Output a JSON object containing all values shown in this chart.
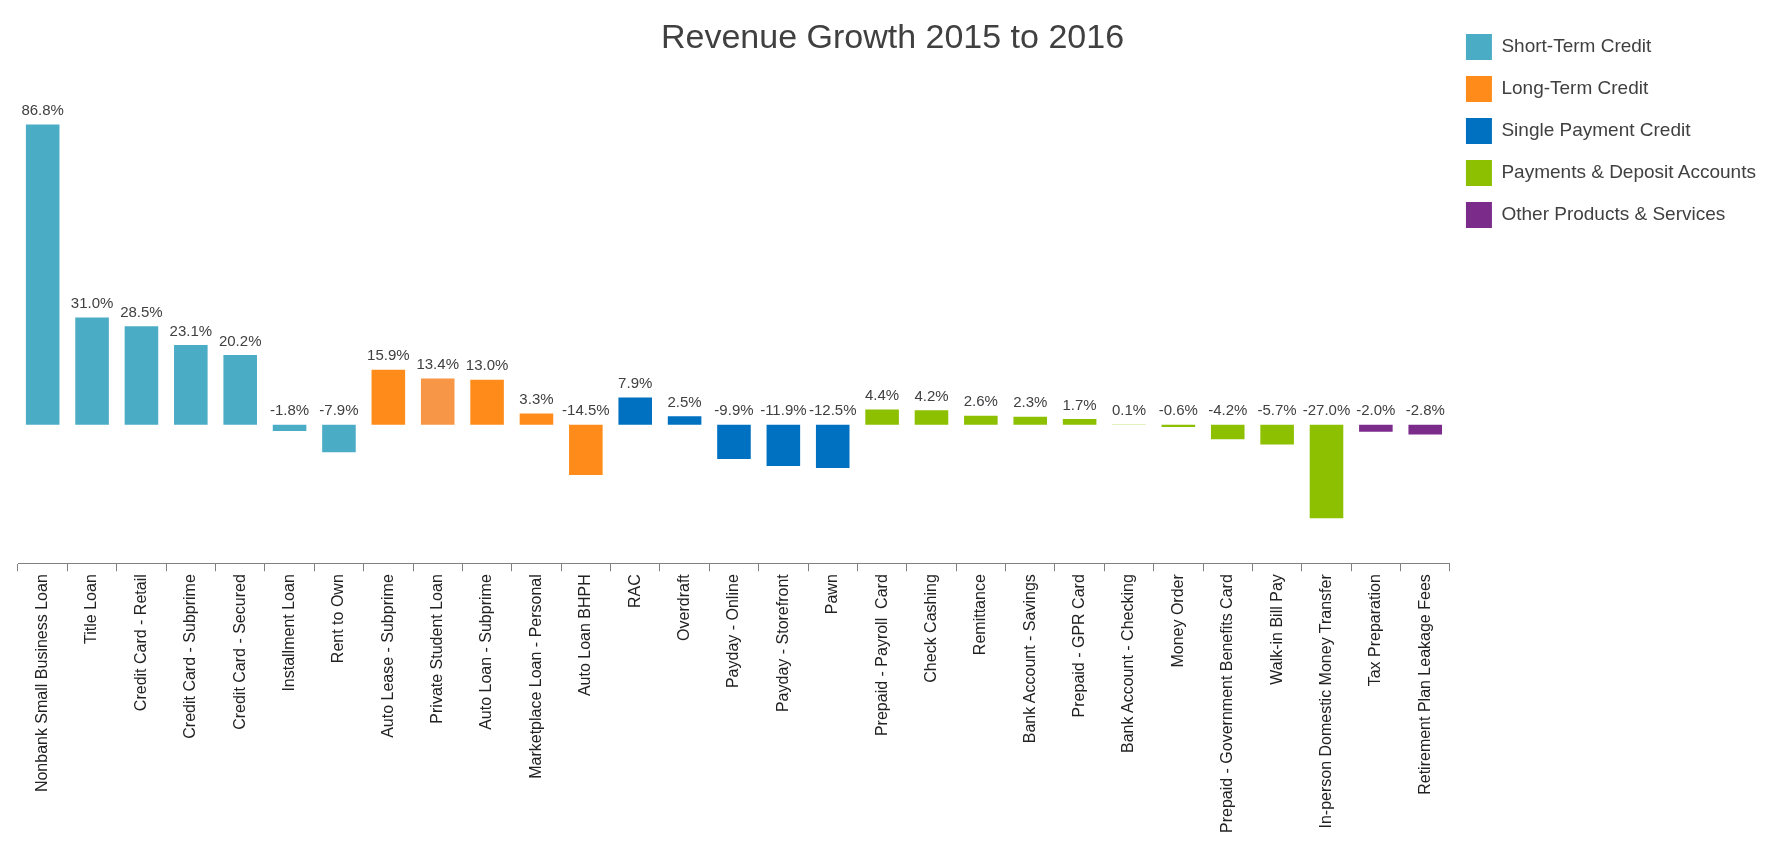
{
  "chart_data": {
    "type": "bar",
    "title": "Revenue Growth 2015 to 2016",
    "categories": [
      "Nonbank Small Business Loan",
      "Title Loan",
      "Credit Card - Retail",
      "Credit Card - Subprime",
      "Credit Card - Secured",
      "Installment Loan",
      "Rent to Own",
      "Auto Lease - Subprime",
      "Private Student Loan",
      "Auto Loan - Subprime",
      "Marketplace Loan - Personal",
      "Auto Loan BHPH",
      "RAC",
      "Overdraft",
      "Payday - Online",
      "Payday - Storefront",
      "Pawn",
      "Prepaid - Payroll  Card",
      "Check Cashing",
      "Remittance",
      "Bank Account - Savings",
      "Prepaid - GPR Card",
      "Bank Account - Checking",
      "Money Order",
      "Prepaid - Government Benefits Card",
      "Walk-in Bill Pay",
      "In-person Domestic Money Transfer",
      "Tax Preparation",
      "Retirement Plan Leakage Fees"
    ],
    "series": [
      {
        "name": "Short-Term Credit",
        "color": "#4bacc6",
        "values": [
          86.8,
          31.0,
          28.5,
          23.1,
          20.2,
          -1.8,
          -7.9,
          null,
          null,
          null,
          null,
          null,
          null,
          null,
          null,
          null,
          null,
          null,
          null,
          null,
          null,
          null,
          null,
          null,
          null,
          null,
          null,
          null,
          null
        ],
        "value_labels": [
          "86.8%",
          "31.0%",
          "28.5%",
          "23.1%",
          "20.2%",
          "-1.8%",
          "-7.9%",
          null,
          null,
          null,
          null,
          null,
          null,
          null,
          null,
          null,
          null,
          null,
          null,
          null,
          null,
          null,
          null,
          null,
          null,
          null,
          null,
          null,
          null
        ]
      },
      {
        "name": "Long-Term Credit",
        "color": "#ff8c1a",
        "colors": [
          null,
          null,
          null,
          null,
          null,
          null,
          null,
          "#ff8c1a",
          "#f79646",
          "#ff8c1a",
          "#ff8c1a",
          "#ff8c1a",
          null,
          null,
          null,
          null,
          null,
          null,
          null,
          null,
          null,
          null,
          null,
          null,
          null,
          null,
          null,
          null,
          null
        ],
        "values": [
          null,
          null,
          null,
          null,
          null,
          null,
          null,
          15.9,
          13.4,
          13.0,
          3.3,
          -14.5,
          null,
          null,
          null,
          null,
          null,
          null,
          null,
          null,
          null,
          null,
          null,
          null,
          null,
          null,
          null,
          null,
          null
        ],
        "value_labels": [
          null,
          null,
          null,
          null,
          null,
          null,
          null,
          "15.9%",
          "13.4%",
          "13.0%",
          "3.3%",
          "-14.5%",
          null,
          null,
          null,
          null,
          null,
          null,
          null,
          null,
          null,
          null,
          null,
          null,
          null,
          null,
          null,
          null,
          null
        ]
      },
      {
        "name": "Single Payment Credit",
        "color": "#0070c0",
        "values": [
          null,
          null,
          null,
          null,
          null,
          null,
          null,
          null,
          null,
          null,
          null,
          null,
          7.9,
          2.5,
          -9.9,
          -11.9,
          -12.5,
          null,
          null,
          null,
          null,
          null,
          null,
          null,
          null,
          null,
          null,
          null,
          null
        ],
        "value_labels": [
          null,
          null,
          null,
          null,
          null,
          null,
          null,
          null,
          null,
          null,
          null,
          null,
          "7.9%",
          "2.5%",
          "-9.9%",
          "-11.9%",
          "-12.5%",
          null,
          null,
          null,
          null,
          null,
          null,
          null,
          null,
          null,
          null,
          null,
          null
        ]
      },
      {
        "name": "Payments & Deposit Accounts",
        "color": "#8cc000",
        "values": [
          null,
          null,
          null,
          null,
          null,
          null,
          null,
          null,
          null,
          null,
          null,
          null,
          null,
          null,
          null,
          null,
          null,
          4.4,
          4.2,
          2.6,
          2.3,
          1.7,
          0.1,
          -0.6,
          -4.2,
          -5.7,
          -27.0,
          null,
          null
        ],
        "value_labels": [
          null,
          null,
          null,
          null,
          null,
          null,
          null,
          null,
          null,
          null,
          null,
          null,
          null,
          null,
          null,
          null,
          null,
          "4.4%",
          "4.2%",
          "2.6%",
          "2.3%",
          "1.7%",
          "0.1%",
          "-0.6%",
          "-4.2%",
          "-5.7%",
          "-27.0%",
          null,
          null
        ]
      },
      {
        "name": "Other Products & Services",
        "color": "#7b2c8b",
        "values": [
          null,
          null,
          null,
          null,
          null,
          null,
          null,
          null,
          null,
          null,
          null,
          null,
          null,
          null,
          null,
          null,
          null,
          null,
          null,
          null,
          null,
          null,
          null,
          null,
          null,
          null,
          null,
          -2.0,
          -2.8
        ],
        "value_labels": [
          null,
          null,
          null,
          null,
          null,
          null,
          null,
          null,
          null,
          null,
          null,
          null,
          null,
          null,
          null,
          null,
          null,
          null,
          null,
          null,
          null,
          null,
          null,
          null,
          null,
          null,
          null,
          "-2.0%",
          "-2.8%"
        ]
      }
    ],
    "legend": "top right",
    "grid": false,
    "tick_labels": "x"
  }
}
